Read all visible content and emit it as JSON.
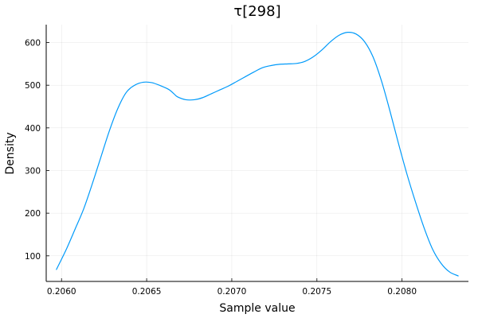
{
  "chart_data": {
    "type": "line",
    "title": "τ[298]",
    "xlabel": "Sample value",
    "ylabel": "Density",
    "xlim": [
      0.20591,
      0.20839
    ],
    "ylim": [
      40,
      642
    ],
    "x_ticks": [
      0.206,
      0.2065,
      0.207,
      0.2075,
      0.208
    ],
    "x_tick_labels": [
      "0.2060",
      "0.2065",
      "0.2070",
      "0.2075",
      "0.2080"
    ],
    "y_ticks": [
      100,
      200,
      300,
      400,
      500,
      600
    ],
    "y_tick_labels": [
      "100",
      "200",
      "300",
      "400",
      "500",
      "600"
    ],
    "grid": true,
    "legend": "none",
    "series": [
      {
        "color": "#009AFA",
        "x": [
          0.20597,
          0.20603,
          0.20608,
          0.20613,
          0.20618,
          0.20623,
          0.20628,
          0.20633,
          0.20638,
          0.20643,
          0.20648,
          0.20653,
          0.20658,
          0.20663,
          0.20666,
          0.20668,
          0.20673,
          0.20678,
          0.20683,
          0.20688,
          0.20693,
          0.20698,
          0.20703,
          0.20708,
          0.20713,
          0.20718,
          0.20723,
          0.20728,
          0.20733,
          0.20738,
          0.20743,
          0.20748,
          0.20753,
          0.20758,
          0.20763,
          0.20768,
          0.20773,
          0.20778,
          0.20783,
          0.20788,
          0.20793,
          0.20798,
          0.20803,
          0.20808,
          0.20813,
          0.20818,
          0.20823,
          0.20828,
          0.20833
        ],
        "y": [
          68,
          117,
          163,
          210,
          268,
          330,
          392,
          445,
          483,
          500,
          507,
          506,
          499,
          490,
          480,
          473,
          466,
          466,
          471,
          480,
          489,
          498,
          509,
          520,
          531,
          541,
          546,
          549,
          550,
          551,
          556,
          567,
          583,
          602,
          617,
          624,
          620,
          602,
          566,
          509,
          438,
          362,
          290,
          225,
          165,
          115,
          82,
          62,
          53
        ]
      }
    ]
  }
}
